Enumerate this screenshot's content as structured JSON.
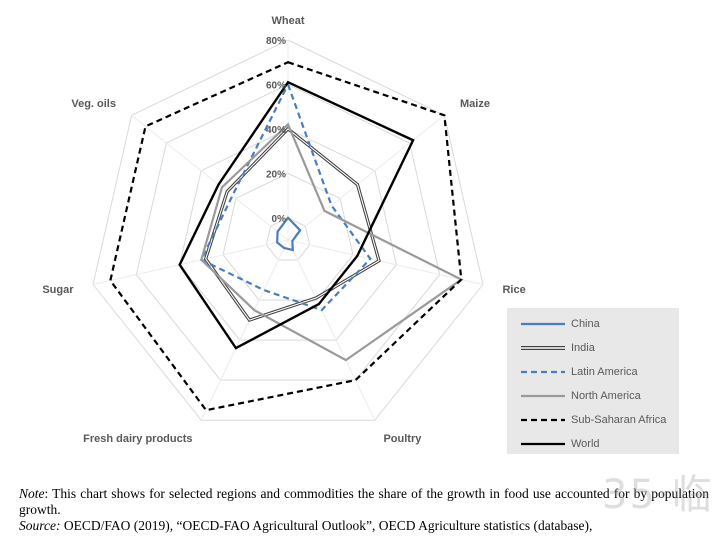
{
  "chart_data": {
    "type": "radar",
    "axes": [
      "Wheat",
      "Maize",
      "Rice",
      "Poultry",
      "Fresh dairy products",
      "Sugar",
      "Veg. oils"
    ],
    "ticks": [
      "0%",
      "20%",
      "40%",
      "60%",
      "80%"
    ],
    "tick_values": [
      0,
      20,
      40,
      60,
      80
    ],
    "range": [
      -10,
      80
    ],
    "grid": true,
    "legend_position": "bottom-right",
    "series": [
      {
        "name": "China",
        "color": "#4a7ebb",
        "dash": "solid",
        "values": [
          0,
          -3,
          -8,
          -5,
          -6,
          -5,
          -4
        ]
      },
      {
        "name": "India",
        "color": "#404040",
        "dash": "double",
        "values": [
          40,
          30,
          32,
          19,
          30,
          28,
          25
        ]
      },
      {
        "name": "Latin America",
        "color": "#4a7ebb",
        "dash": "dashed",
        "values": [
          60,
          15,
          28,
          25,
          15,
          30,
          22
        ]
      },
      {
        "name": "North America",
        "color": "#9a9a9a",
        "dash": "solid",
        "values": [
          42,
          11,
          70,
          50,
          25,
          30,
          28
        ]
      },
      {
        "name": "Sub-Saharan Africa",
        "color": "#000000",
        "dash": "dashed",
        "values": [
          70,
          80,
          70,
          60,
          75,
          72,
          72
        ]
      },
      {
        "name": "World",
        "color": "#000000",
        "dash": "solid",
        "values": [
          61,
          62,
          22,
          22,
          44,
          40,
          30
        ]
      }
    ]
  },
  "note": {
    "label": "Note",
    "text": ": This chart shows for selected regions and commodities the share of the growth in food use accounted for by population growth.",
    "source_label": "Source:",
    "source_text": " OECD/FAO (2019), “OECD-FAO Agricultural Outlook”, OECD Agriculture statistics (database),"
  },
  "watermark": "35·临"
}
